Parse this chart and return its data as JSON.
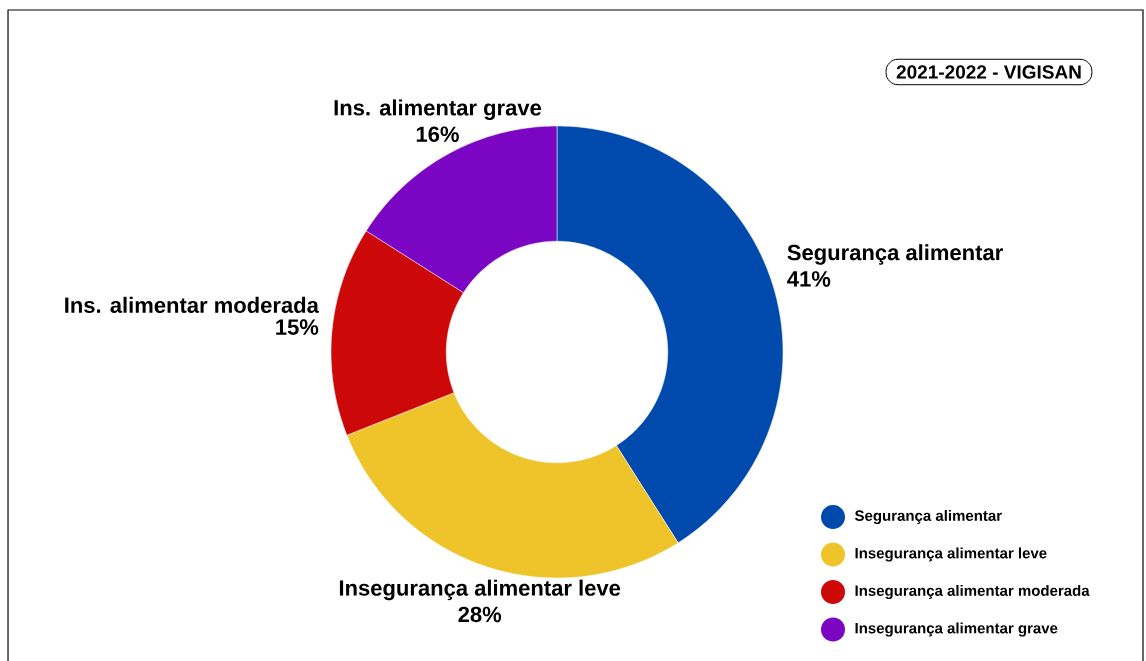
{
  "chart_data": {
    "type": "donut",
    "title": "2021-2022 - VIGISAN",
    "categories": [
      "Segurança alimentar",
      "Insegurança alimentar leve",
      "Insegurança alimentar moderada",
      "Insegurança alimentar grave"
    ],
    "values": [
      41,
      28,
      15,
      16
    ],
    "colors": [
      "#004aad",
      "#eec42a",
      "#cc0808",
      "#7a05c3"
    ],
    "value_labels": [
      "41%",
      "28%",
      "15%",
      "16%"
    ],
    "annotations": [
      {
        "text": "Segurança alimentar",
        "x": "Segurança alimentar"
      },
      {
        "text": "Insegurança alimentar leve",
        "x": "Insegurança alimentar leve"
      },
      {
        "text": "Ins. alimentar moderada",
        "x": "Insegurança alimentar moderada"
      },
      {
        "text": "Ins. alimentar grave",
        "x": "Insegurança alimentar grave"
      }
    ],
    "legend": "bottom right"
  }
}
